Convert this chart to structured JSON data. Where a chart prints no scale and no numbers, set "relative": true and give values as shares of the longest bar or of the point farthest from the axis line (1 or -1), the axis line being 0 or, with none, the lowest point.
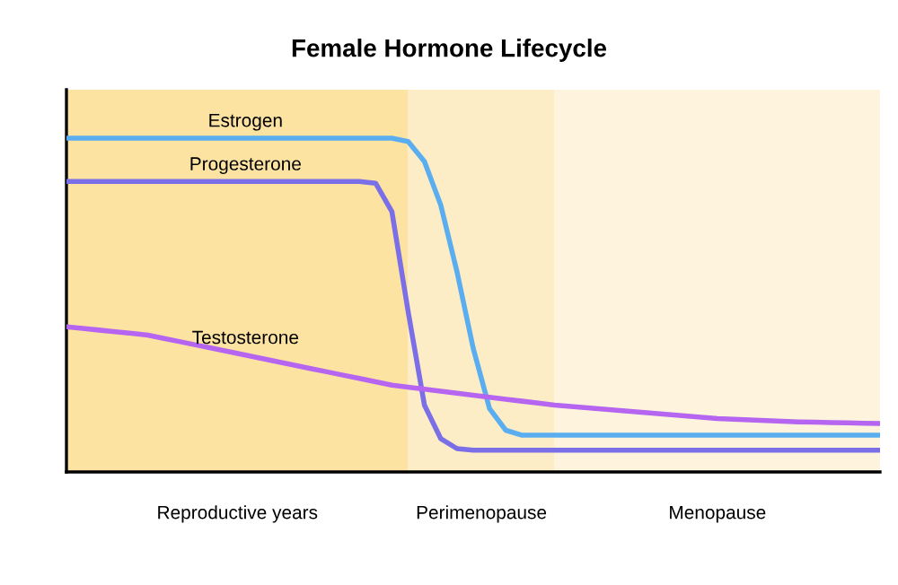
{
  "chart_data": {
    "type": "line",
    "title": "Female Hormone Lifecycle",
    "relative": true,
    "tick_labels": false,
    "legend": false,
    "marker": "none",
    "line_style": "solid",
    "categories": [
      null,
      null,
      null,
      null,
      null,
      null,
      null,
      null,
      null,
      null,
      null,
      null,
      null,
      null,
      null,
      null,
      null,
      null,
      null,
      null,
      null,
      null,
      null,
      null,
      null,
      null,
      null,
      null,
      null,
      null,
      null,
      null,
      null,
      null,
      null,
      null,
      null,
      null,
      null,
      null,
      null,
      null,
      null,
      null,
      null,
      null,
      null,
      null,
      null,
      null,
      null
    ],
    "annotations": [
      "Reproductive years",
      "Perimenopause",
      "Menopause"
    ],
    "series": [
      {
        "name": "Estrogen",
        "color": "#5aaef0",
        "values": [
          1,
          1,
          1,
          1,
          1,
          1,
          1,
          1,
          1,
          1,
          1,
          1,
          1,
          1,
          1,
          1,
          1,
          1,
          1,
          1,
          1,
          0.99,
          0.93,
          0.8,
          0.6,
          0.37,
          0.19,
          0.125,
          0.11,
          0.11,
          0.11,
          0.11,
          0.11,
          0.11,
          0.11,
          0.11,
          0.11,
          0.11,
          0.11,
          0.11,
          0.11,
          0.11,
          0.11,
          0.11,
          0.11,
          0.11,
          0.11,
          0.11,
          0.11,
          0.11,
          0.11
        ]
      },
      {
        "name": "Progesterone",
        "color": "#7b6fe8",
        "values": [
          0.87,
          0.87,
          0.87,
          0.87,
          0.87,
          0.87,
          0.87,
          0.87,
          0.87,
          0.87,
          0.87,
          0.87,
          0.87,
          0.87,
          0.87,
          0.87,
          0.87,
          0.87,
          0.87,
          0.865,
          0.78,
          0.48,
          0.2,
          0.1,
          0.07,
          0.065,
          0.065,
          0.065,
          0.065,
          0.065,
          0.065,
          0.065,
          0.065,
          0.065,
          0.065,
          0.065,
          0.065,
          0.065,
          0.065,
          0.065,
          0.065,
          0.065,
          0.065,
          0.065,
          0.065,
          0.065,
          0.065,
          0.065,
          0.065,
          0.065,
          0.065
        ]
      },
      {
        "name": "Testosterone",
        "color": "#b565f0",
        "values": [
          0.435,
          0.43,
          0.425,
          0.42,
          0.415,
          0.41,
          0.4,
          0.39,
          0.38,
          0.37,
          0.36,
          0.35,
          0.34,
          0.33,
          0.32,
          0.31,
          0.3,
          0.29,
          0.28,
          0.27,
          0.26,
          0.254,
          0.248,
          0.242,
          0.236,
          0.23,
          0.224,
          0.218,
          0.212,
          0.206,
          0.2,
          0.196,
          0.192,
          0.188,
          0.184,
          0.18,
          0.176,
          0.172,
          0.168,
          0.164,
          0.16,
          0.158,
          0.156,
          0.154,
          0.152,
          0.15,
          0.149,
          0.148,
          0.147,
          0.146,
          0.145
        ]
      }
    ]
  }
}
